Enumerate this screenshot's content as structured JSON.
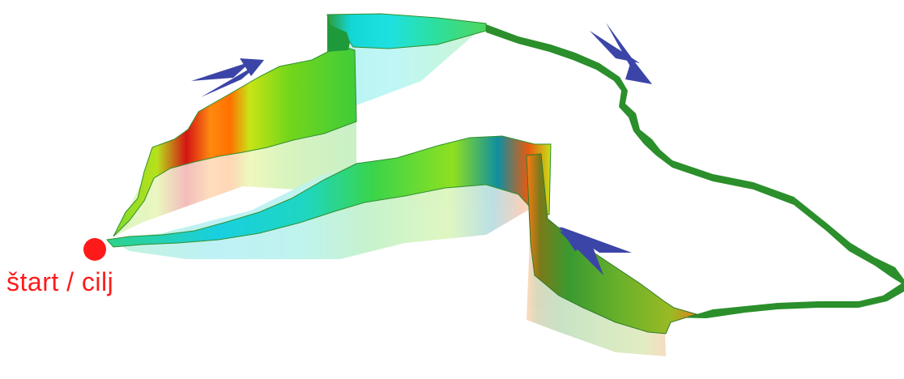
{
  "start_label": "štart / cilj",
  "colors": {
    "start_marker": "#ff1a1a",
    "label": "#ff1a1a",
    "arrow": "#3b45a8",
    "outline": "#1e7a1e"
  },
  "icons": {
    "direction_arrow": "double-chevron-arrow-icon",
    "start_marker": "red-dot-icon"
  }
}
